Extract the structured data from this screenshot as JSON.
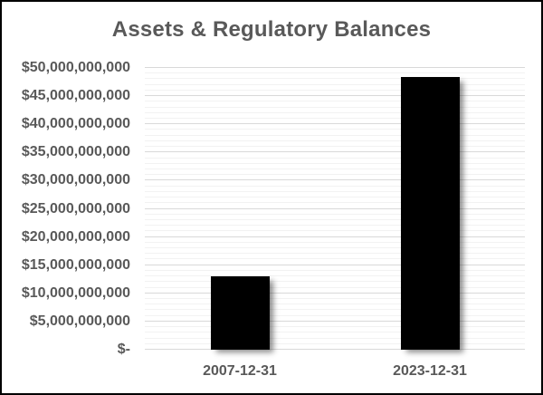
{
  "colors": {
    "bar": "#000000",
    "text": "#595959",
    "gridline_major": "#d9d9d9",
    "gridline_minor": "#f2f2f2",
    "background": "#ffffff",
    "frame_border": "#000000"
  },
  "chart_data": {
    "type": "bar",
    "title": "Assets & Regulatory Balances",
    "categories": [
      "2007-12-31",
      "2023-12-31"
    ],
    "values": [
      13000000000,
      48400000000
    ],
    "xlabel": "",
    "ylabel": "",
    "ylim": [
      0,
      50000000000
    ],
    "y_major_step": 5000000000,
    "y_minor_step": 1000000000,
    "y_tick_labels": [
      "$-",
      "$5,000,000,000",
      "$10,000,000,000",
      "$15,000,000,000",
      "$20,000,000,000",
      "$25,000,000,000",
      "$30,000,000,000",
      "$35,000,000,000",
      "$40,000,000,000",
      "$45,000,000,000",
      "$50,000,000,000"
    ],
    "grid": true,
    "legend": false,
    "bar_color": "#000000"
  }
}
